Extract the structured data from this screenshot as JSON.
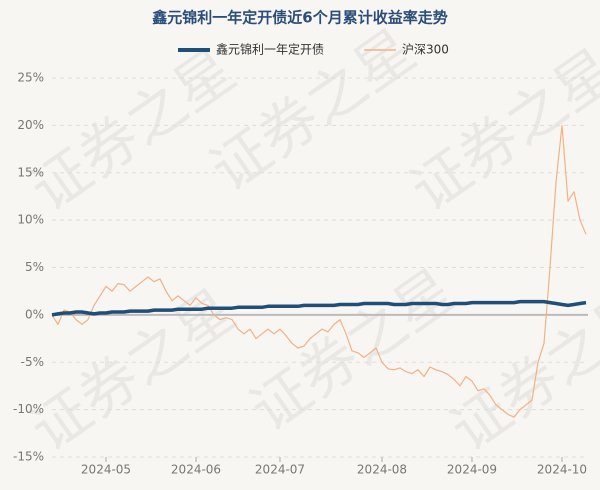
{
  "chart_data": {
    "type": "line",
    "title": "鑫元锦利一年定开债近6个月累计收益率走势",
    "watermark": "证券之星",
    "legend": "top",
    "grid": true,
    "categories": [
      null,
      null,
      null,
      null,
      null,
      null,
      null,
      null,
      null,
      "2024-05",
      null,
      null,
      null,
      null,
      null,
      null,
      null,
      null,
      null,
      null,
      null,
      null,
      null,
      null,
      "2024-06",
      null,
      null,
      null,
      null,
      null,
      null,
      null,
      null,
      null,
      null,
      null,
      null,
      null,
      "2024-07",
      null,
      null,
      null,
      null,
      null,
      null,
      null,
      null,
      null,
      null,
      null,
      null,
      null,
      null,
      null,
      null,
      "2024-08",
      null,
      null,
      null,
      null,
      null,
      null,
      null,
      null,
      null,
      null,
      null,
      null,
      null,
      null,
      "2024-09",
      null,
      null,
      null,
      null,
      null,
      null,
      null,
      null,
      null,
      null,
      null,
      null,
      null,
      null,
      "2024-10",
      null,
      null,
      null,
      null
    ],
    "ylim": [
      -15,
      25
    ],
    "yticks": [
      {
        "value": -15,
        "label": "-15%"
      },
      {
        "value": -10,
        "label": "-10%"
      },
      {
        "value": -5,
        "label": "-5%"
      },
      {
        "value": 0,
        "label": "0%"
      },
      {
        "value": 5,
        "label": "5%"
      },
      {
        "value": 10,
        "label": "10%"
      },
      {
        "value": 15,
        "label": "15%"
      },
      {
        "value": 20,
        "label": "20%"
      },
      {
        "value": 25,
        "label": "25%"
      }
    ],
    "series": [
      {
        "name": "鑫元锦利一年定开债",
        "color": "#1f4e79",
        "values": [
          0.0,
          0.1,
          0.2,
          0.2,
          0.3,
          0.3,
          0.2,
          0.1,
          0.2,
          0.2,
          0.3,
          0.3,
          0.3,
          0.4,
          0.4,
          0.4,
          0.4,
          0.5,
          0.5,
          0.5,
          0.5,
          0.6,
          0.6,
          0.6,
          0.6,
          0.6,
          0.7,
          0.7,
          0.7,
          0.7,
          0.7,
          0.8,
          0.8,
          0.8,
          0.8,
          0.8,
          0.9,
          0.9,
          0.9,
          0.9,
          0.9,
          0.9,
          1.0,
          1.0,
          1.0,
          1.0,
          1.0,
          1.0,
          1.1,
          1.1,
          1.1,
          1.1,
          1.2,
          1.2,
          1.2,
          1.2,
          1.2,
          1.1,
          1.1,
          1.1,
          1.2,
          1.2,
          1.2,
          1.2,
          1.2,
          1.1,
          1.1,
          1.2,
          1.2,
          1.2,
          1.3,
          1.3,
          1.3,
          1.3,
          1.3,
          1.3,
          1.3,
          1.3,
          1.4,
          1.4,
          1.4,
          1.4,
          1.4,
          1.3,
          1.2,
          1.1,
          1.0,
          1.1,
          1.2,
          1.3
        ]
      },
      {
        "name": "沪深300",
        "color": "#f4b183",
        "values": [
          0,
          -1,
          0.5,
          0.3,
          -0.5,
          -1,
          -0.5,
          1,
          2,
          3,
          2.5,
          3.3,
          3.2,
          2.5,
          3,
          3.5,
          4,
          3.5,
          3.8,
          2.5,
          1.5,
          2,
          1.5,
          1,
          1.8,
          1.2,
          1,
          0,
          -0.5,
          -0.3,
          -0.5,
          -1.5,
          -2,
          -1.5,
          -2.5,
          -2,
          -1.5,
          -2,
          -1.5,
          -2.2,
          -3,
          -3.5,
          -3.3,
          -2.5,
          -2,
          -1.5,
          -1.8,
          -1,
          -0.5,
          -2,
          -3.8,
          -4,
          -4.5,
          -4,
          -3.5,
          -5,
          -5.7,
          -5.8,
          -5.6,
          -6,
          -6.2,
          -5.8,
          -6.5,
          -5.5,
          -5.8,
          -6,
          -6.3,
          -6.8,
          -7.5,
          -6.5,
          -7,
          -8,
          -7.8,
          -8.5,
          -9.5,
          -10,
          -10.5,
          -10.8,
          -10,
          -9.5,
          -9,
          -5,
          -3,
          5,
          14,
          20,
          12,
          13,
          10,
          8.5
        ]
      }
    ]
  }
}
